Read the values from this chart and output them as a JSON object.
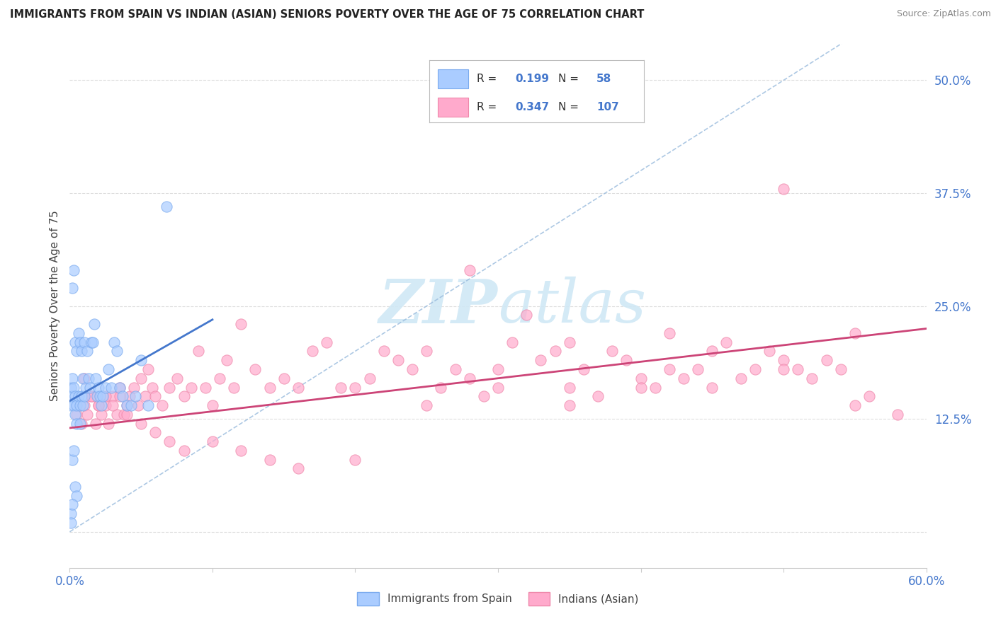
{
  "title": "IMMIGRANTS FROM SPAIN VS INDIAN (ASIAN) SENIORS POVERTY OVER THE AGE OF 75 CORRELATION CHART",
  "source": "Source: ZipAtlas.com",
  "ylabel": "Seniors Poverty Over the Age of 75",
  "xmin": 0.0,
  "xmax": 0.6,
  "ymin": -0.04,
  "ymax": 0.54,
  "ytick_vals": [
    0.0,
    0.125,
    0.25,
    0.375,
    0.5
  ],
  "ytick_labels": [
    "",
    "12.5%",
    "25.0%",
    "37.5%",
    "50.0%"
  ],
  "background_color": "#ffffff",
  "grid_color": "#dddddd",
  "legend_R1": "0.199",
  "legend_N1": "58",
  "legend_R2": "0.347",
  "legend_N2": "107",
  "color_spain_face": "#aaccff",
  "color_spain_edge": "#7aaaee",
  "color_india_face": "#ffaacc",
  "color_india_edge": "#ee88aa",
  "color_spain_line": "#4477cc",
  "color_india_line": "#cc4477",
  "color_diag_line": "#99bbdd",
  "color_axis_labels": "#4477cc",
  "watermark_color": "#d0e8f5",
  "spain_x": [
    0.001,
    0.001,
    0.002,
    0.002,
    0.002,
    0.003,
    0.003,
    0.003,
    0.004,
    0.004,
    0.004,
    0.005,
    0.005,
    0.005,
    0.006,
    0.006,
    0.007,
    0.007,
    0.007,
    0.008,
    0.008,
    0.009,
    0.009,
    0.01,
    0.01,
    0.011,
    0.012,
    0.013,
    0.014,
    0.015,
    0.016,
    0.017,
    0.018,
    0.019,
    0.02,
    0.021,
    0.022,
    0.023,
    0.025,
    0.027,
    0.029,
    0.031,
    0.033,
    0.035,
    0.037,
    0.04,
    0.043,
    0.046,
    0.05,
    0.055,
    0.002,
    0.003,
    0.004,
    0.005,
    0.001,
    0.001,
    0.002,
    0.068
  ],
  "spain_y": [
    0.14,
    0.16,
    0.15,
    0.17,
    0.27,
    0.14,
    0.16,
    0.29,
    0.13,
    0.15,
    0.21,
    0.12,
    0.14,
    0.2,
    0.15,
    0.22,
    0.12,
    0.14,
    0.21,
    0.15,
    0.2,
    0.14,
    0.17,
    0.15,
    0.21,
    0.16,
    0.2,
    0.17,
    0.16,
    0.21,
    0.21,
    0.23,
    0.17,
    0.15,
    0.16,
    0.15,
    0.14,
    0.15,
    0.16,
    0.18,
    0.16,
    0.21,
    0.2,
    0.16,
    0.15,
    0.14,
    0.14,
    0.15,
    0.19,
    0.14,
    0.08,
    0.09,
    0.05,
    0.04,
    0.02,
    0.01,
    0.03,
    0.36
  ],
  "india_x": [
    0.005,
    0.008,
    0.01,
    0.012,
    0.015,
    0.018,
    0.02,
    0.022,
    0.025,
    0.027,
    0.03,
    0.033,
    0.035,
    0.038,
    0.04,
    0.042,
    0.045,
    0.048,
    0.05,
    0.053,
    0.055,
    0.058,
    0.06,
    0.065,
    0.07,
    0.075,
    0.08,
    0.085,
    0.09,
    0.095,
    0.1,
    0.105,
    0.11,
    0.115,
    0.12,
    0.13,
    0.14,
    0.15,
    0.16,
    0.17,
    0.18,
    0.19,
    0.2,
    0.21,
    0.22,
    0.23,
    0.24,
    0.25,
    0.26,
    0.27,
    0.28,
    0.29,
    0.3,
    0.31,
    0.32,
    0.33,
    0.34,
    0.35,
    0.36,
    0.37,
    0.38,
    0.39,
    0.4,
    0.41,
    0.42,
    0.43,
    0.44,
    0.45,
    0.46,
    0.47,
    0.48,
    0.49,
    0.5,
    0.51,
    0.52,
    0.53,
    0.54,
    0.55,
    0.56,
    0.58,
    0.01,
    0.015,
    0.02,
    0.025,
    0.03,
    0.035,
    0.04,
    0.05,
    0.06,
    0.07,
    0.08,
    0.1,
    0.12,
    0.14,
    0.16,
    0.2,
    0.25,
    0.3,
    0.35,
    0.4,
    0.45,
    0.5,
    0.55,
    0.28,
    0.35,
    0.42,
    0.5
  ],
  "india_y": [
    0.13,
    0.12,
    0.14,
    0.13,
    0.15,
    0.12,
    0.14,
    0.13,
    0.14,
    0.12,
    0.15,
    0.13,
    0.16,
    0.13,
    0.14,
    0.15,
    0.16,
    0.14,
    0.17,
    0.15,
    0.18,
    0.16,
    0.15,
    0.14,
    0.16,
    0.17,
    0.15,
    0.16,
    0.2,
    0.16,
    0.14,
    0.17,
    0.19,
    0.16,
    0.23,
    0.18,
    0.16,
    0.17,
    0.16,
    0.2,
    0.21,
    0.16,
    0.16,
    0.17,
    0.2,
    0.19,
    0.18,
    0.2,
    0.16,
    0.18,
    0.17,
    0.15,
    0.18,
    0.21,
    0.24,
    0.19,
    0.2,
    0.16,
    0.18,
    0.15,
    0.2,
    0.19,
    0.17,
    0.16,
    0.18,
    0.17,
    0.18,
    0.2,
    0.21,
    0.17,
    0.18,
    0.2,
    0.19,
    0.18,
    0.17,
    0.19,
    0.18,
    0.14,
    0.15,
    0.13,
    0.17,
    0.15,
    0.14,
    0.15,
    0.14,
    0.15,
    0.13,
    0.12,
    0.11,
    0.1,
    0.09,
    0.1,
    0.09,
    0.08,
    0.07,
    0.08,
    0.14,
    0.16,
    0.14,
    0.16,
    0.16,
    0.18,
    0.22,
    0.29,
    0.21,
    0.22,
    0.38
  ],
  "spain_line_x": [
    0.0,
    0.1
  ],
  "spain_line_y": [
    0.145,
    0.235
  ],
  "india_line_x": [
    0.0,
    0.6
  ],
  "india_line_y": [
    0.115,
    0.225
  ]
}
